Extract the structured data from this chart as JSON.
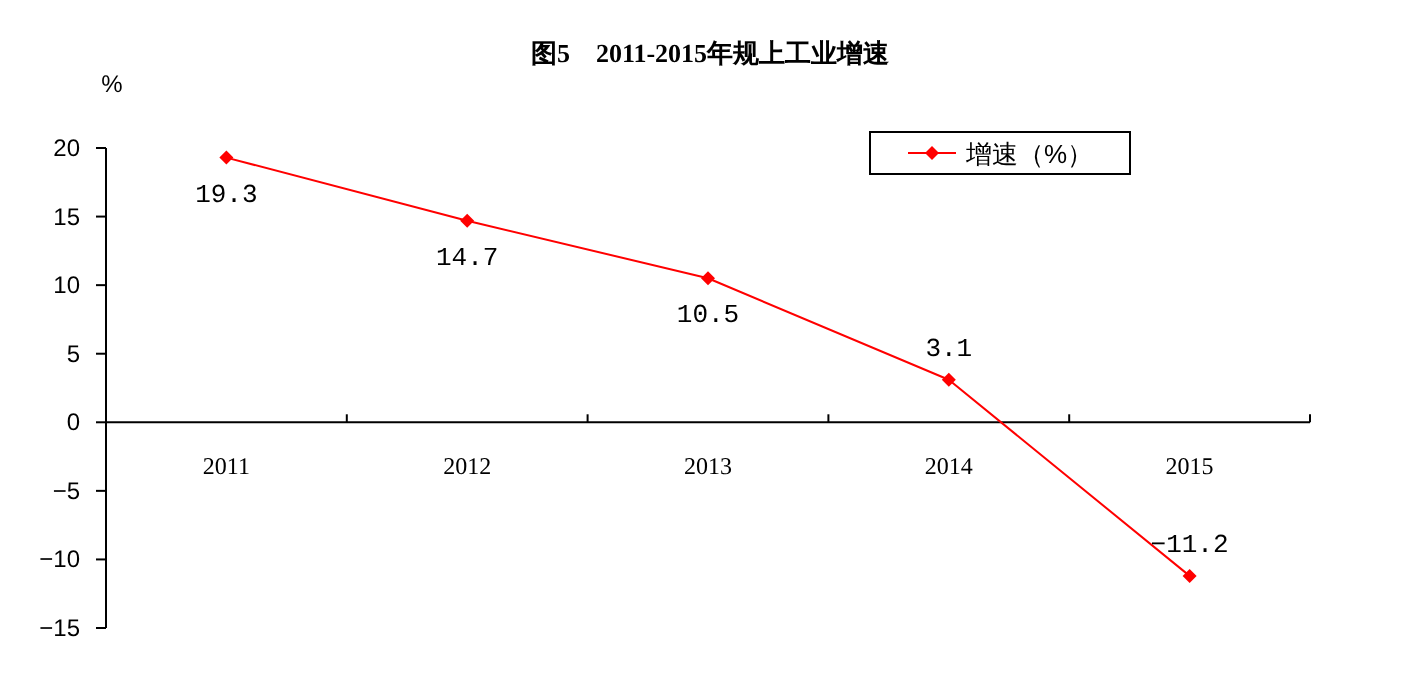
{
  "chart_data": {
    "type": "line",
    "title": "图5　2011-2015年规上工业增速",
    "ylabel": "%",
    "categories": [
      "2011",
      "2012",
      "2013",
      "2014",
      "2015"
    ],
    "series": [
      {
        "name": "增速（%）",
        "color": "#ff0000",
        "values": [
          19.3,
          14.7,
          10.5,
          3.1,
          -11.2
        ]
      }
    ],
    "ylim": [
      -15,
      20
    ],
    "yticks": [
      -15,
      -10,
      -5,
      0,
      5,
      10,
      15,
      20
    ],
    "data_labels": true,
    "legend": "top right",
    "marker": "diamond",
    "line_style": "solid",
    "grid": false
  }
}
